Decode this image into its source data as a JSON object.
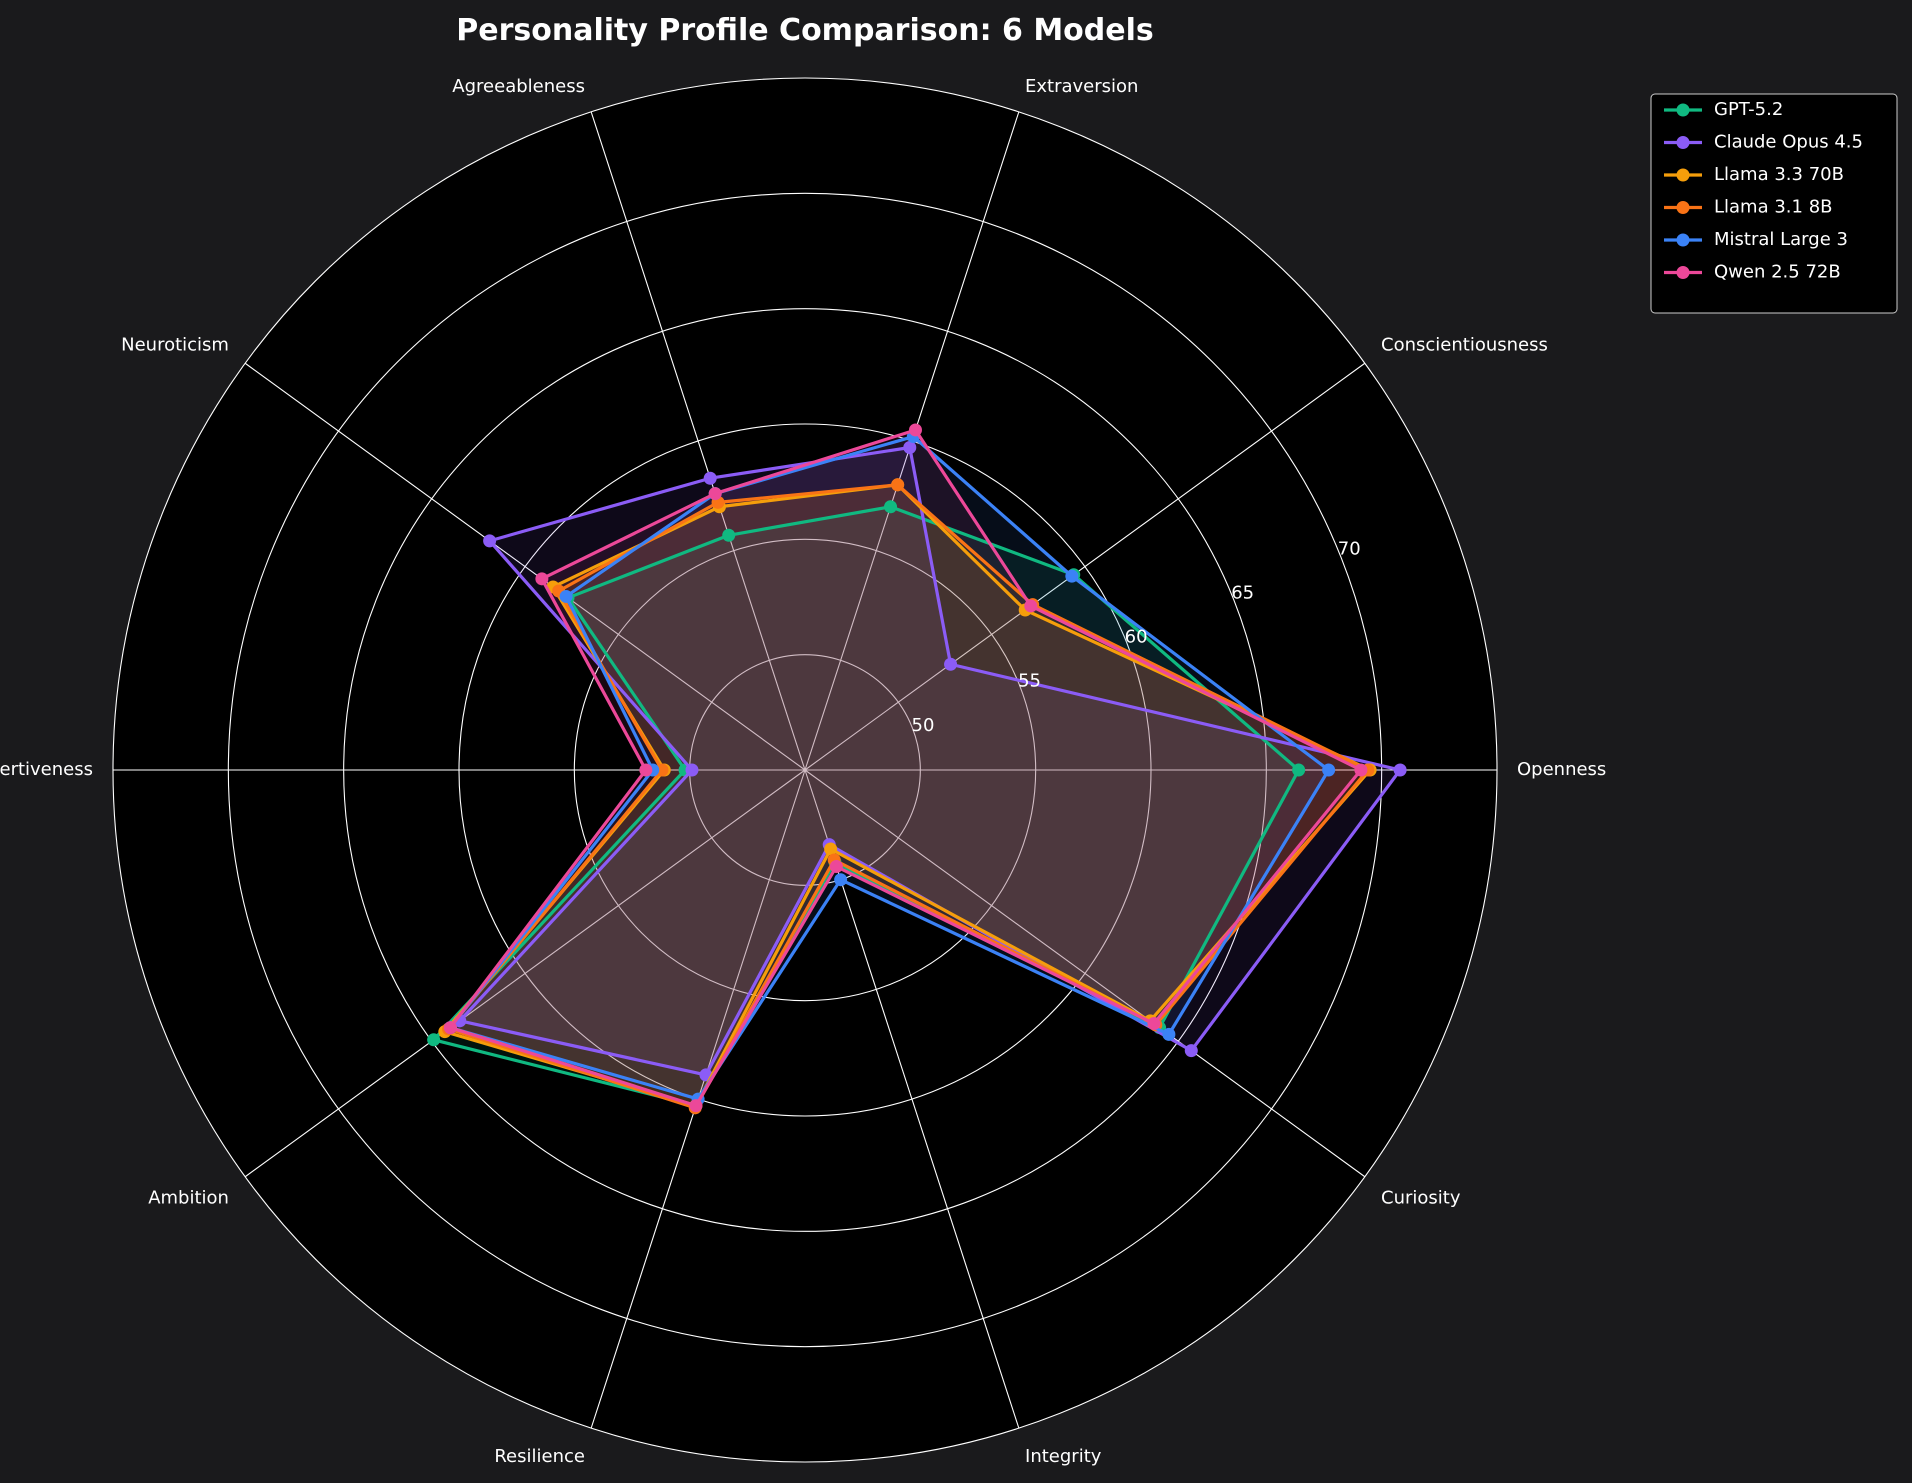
{
  "chart_data": {
    "type": "radar",
    "title": "Personality Profile Comparison: 6 Models",
    "axes": [
      "Openness",
      "Conscientiousness",
      "Extraversion",
      "Agreeableness",
      "Neuroticism",
      "Assertiveness",
      "Ambition",
      "Resilience",
      "Integrity",
      "Curiosity"
    ],
    "radial_ticks": [
      50,
      55,
      60,
      65,
      70
    ],
    "rlim": [
      45,
      75
    ],
    "grid": true,
    "legend_position": "upper-right outside",
    "series": [
      {
        "name": "GPT-5.2",
        "color": "#10b981",
        "values": [
          66.4,
          59.4,
          57.0,
          55.7,
          57.7,
          50.2,
          64.9,
          60.3,
          49.2,
          64.0
        ]
      },
      {
        "name": "Claude Opus 4.5",
        "color": "#8b5cf6",
        "values": [
          70.8,
          52.8,
          59.7,
          58.3,
          61.9,
          49.9,
          63.5,
          58.9,
          48.4,
          65.7
        ]
      },
      {
        "name": "Llama 3.3 70B",
        "color": "#f59e0b",
        "values": [
          69.5,
          56.8,
          58.0,
          57.0,
          58.5,
          51.1,
          64.3,
          60.3,
          48.6,
          63.5
        ]
      },
      {
        "name": "Llama 3.1 8B",
        "color": "#f97316",
        "values": [
          69.4,
          57.2,
          58.0,
          57.2,
          58.2,
          51.2,
          64.1,
          60.4,
          49.1,
          63.8
        ]
      },
      {
        "name": "Mistral Large 3",
        "color": "#3b82f6",
        "values": [
          67.7,
          59.3,
          60.2,
          57.6,
          57.8,
          51.6,
          64.0,
          60.0,
          50.0,
          64.5
        ]
      },
      {
        "name": "Qwen 2.5 72B",
        "color": "#ec4899",
        "values": [
          69.1,
          57.1,
          60.5,
          57.6,
          59.1,
          51.9,
          64.0,
          60.3,
          49.4,
          63.7
        ]
      }
    ]
  }
}
